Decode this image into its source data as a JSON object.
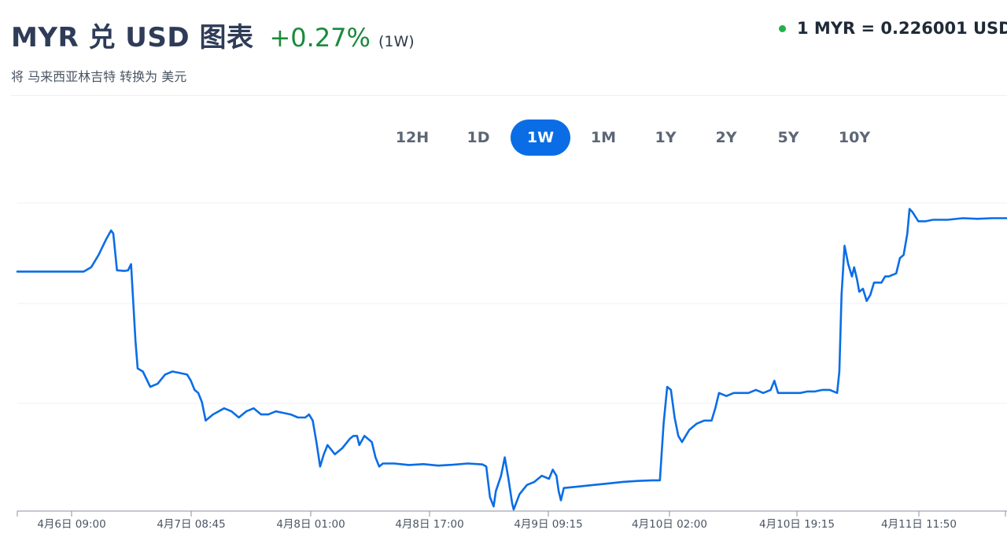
{
  "header": {
    "title": "MYR 兑 USD 图表",
    "change": "+0.27%",
    "period": "(1W)",
    "subtitle": "将 马来西亚林吉特 转换为 美元"
  },
  "rate": {
    "text": "1 MYR = 0.226001 USD",
    "status_color": "#22b04b"
  },
  "tabs": [
    {
      "label": "12H",
      "active": false
    },
    {
      "label": "1D",
      "active": false
    },
    {
      "label": "1W",
      "active": true
    },
    {
      "label": "1M",
      "active": false
    },
    {
      "label": "1Y",
      "active": false
    },
    {
      "label": "2Y",
      "active": false
    },
    {
      "label": "5Y",
      "active": false
    },
    {
      "label": "10Y",
      "active": false
    }
  ],
  "colors": {
    "line": "#0a6de6",
    "accent": "#0a6de6",
    "positive": "#1b8a3c"
  },
  "chart_data": {
    "type": "line",
    "title": "",
    "xlabel": "",
    "ylabel": "",
    "grid": true,
    "x_tick_labels": [
      "4月6日 09:00",
      "4月7日 08:45",
      "4月8日 01:00",
      "4月8日 17:00",
      "4月9日 09:15",
      "4月10日 02:00",
      "4月10日 19:15",
      "4月11日 11:50"
    ],
    "x_range_hours": [
      0,
      134
    ],
    "y_range": [
      0,
      100
    ],
    "series": [
      {
        "name": "",
        "points": [
          [
            0,
            77.6
          ],
          [
            9,
            77.6
          ],
          [
            10,
            79
          ],
          [
            11,
            83
          ],
          [
            12,
            88
          ],
          [
            12.7,
            91
          ],
          [
            13,
            90
          ],
          [
            13.5,
            78
          ],
          [
            14.5,
            77.8
          ],
          [
            15,
            78
          ],
          [
            15.4,
            80
          ],
          [
            16,
            55
          ],
          [
            16.3,
            46
          ],
          [
            17,
            45
          ],
          [
            18,
            40
          ],
          [
            19,
            41
          ],
          [
            20,
            44
          ],
          [
            21,
            45
          ],
          [
            22,
            44.5
          ],
          [
            23,
            44
          ],
          [
            23.5,
            42
          ],
          [
            24,
            39
          ],
          [
            24.5,
            38
          ],
          [
            25,
            35
          ],
          [
            25.5,
            29
          ],
          [
            26.5,
            31
          ],
          [
            28,
            33
          ],
          [
            29,
            32
          ],
          [
            30,
            30
          ],
          [
            31,
            32
          ],
          [
            32,
            33
          ],
          [
            33,
            31
          ],
          [
            34,
            31
          ],
          [
            35,
            32
          ],
          [
            36,
            31.5
          ],
          [
            37,
            31
          ],
          [
            38,
            30
          ],
          [
            39,
            30
          ],
          [
            39.5,
            31
          ],
          [
            40,
            29
          ],
          [
            40.5,
            22
          ],
          [
            41,
            14
          ],
          [
            41.5,
            18
          ],
          [
            42,
            21
          ],
          [
            43,
            18
          ],
          [
            44,
            20
          ],
          [
            45,
            23
          ],
          [
            45.5,
            24
          ],
          [
            46,
            24
          ],
          [
            46.3,
            21
          ],
          [
            47,
            24
          ],
          [
            48,
            22
          ],
          [
            48.5,
            17
          ],
          [
            49,
            14
          ],
          [
            49.5,
            15
          ],
          [
            51,
            15
          ],
          [
            53,
            14.5
          ],
          [
            55,
            14.8
          ],
          [
            57,
            14.3
          ],
          [
            59,
            14.6
          ],
          [
            61,
            15
          ],
          [
            63,
            14.7
          ],
          [
            63.5,
            14
          ],
          [
            64,
            4
          ],
          [
            64.5,
            1
          ],
          [
            64.8,
            6
          ],
          [
            65.5,
            11
          ],
          [
            66,
            17
          ],
          [
            66.5,
            10
          ],
          [
            67,
            2
          ],
          [
            67.2,
            0
          ],
          [
            68,
            5
          ],
          [
            69,
            8
          ],
          [
            70,
            9
          ],
          [
            71,
            11
          ],
          [
            72,
            10
          ],
          [
            72.5,
            13
          ],
          [
            73,
            11
          ],
          [
            73.3,
            6
          ],
          [
            73.6,
            3
          ],
          [
            74,
            7
          ],
          [
            76,
            7.5
          ],
          [
            78,
            8
          ],
          [
            80,
            8.5
          ],
          [
            82,
            9
          ],
          [
            84,
            9.3
          ],
          [
            86,
            9.5
          ],
          [
            87,
            9.5
          ],
          [
            87.5,
            28
          ],
          [
            88,
            40
          ],
          [
            88.5,
            39
          ],
          [
            89,
            30
          ],
          [
            89.5,
            24
          ],
          [
            90,
            22
          ],
          [
            91,
            26
          ],
          [
            92,
            28
          ],
          [
            93,
            29
          ],
          [
            94,
            29
          ],
          [
            94.5,
            33
          ],
          [
            95,
            38
          ],
          [
            96,
            37
          ],
          [
            97,
            38
          ],
          [
            98,
            38
          ],
          [
            99,
            38
          ],
          [
            100,
            39
          ],
          [
            101,
            38
          ],
          [
            102,
            39
          ],
          [
            102.5,
            42
          ],
          [
            103,
            38
          ],
          [
            104,
            38
          ],
          [
            106,
            38
          ],
          [
            107,
            38.5
          ],
          [
            108,
            38.5
          ],
          [
            109,
            39
          ],
          [
            110,
            39
          ],
          [
            111,
            38
          ],
          [
            111.3,
            45
          ],
          [
            111.6,
            70
          ],
          [
            112,
            86
          ],
          [
            112.5,
            80
          ],
          [
            113,
            76
          ],
          [
            113.3,
            79
          ],
          [
            113.7,
            75
          ],
          [
            114,
            71
          ],
          [
            114.5,
            72
          ],
          [
            115,
            68
          ],
          [
            115.5,
            70
          ],
          [
            116,
            74
          ],
          [
            117,
            74
          ],
          [
            117.5,
            76
          ],
          [
            118,
            76
          ],
          [
            119,
            77
          ],
          [
            119.5,
            82
          ],
          [
            120,
            83
          ],
          [
            120.5,
            90
          ],
          [
            120.8,
            98
          ],
          [
            121.2,
            97
          ],
          [
            122,
            94
          ],
          [
            123,
            94
          ],
          [
            124,
            94.5
          ],
          [
            126,
            94.5
          ],
          [
            128,
            95
          ],
          [
            130,
            94.8
          ],
          [
            132,
            95
          ],
          [
            134,
            95
          ]
        ]
      }
    ]
  }
}
